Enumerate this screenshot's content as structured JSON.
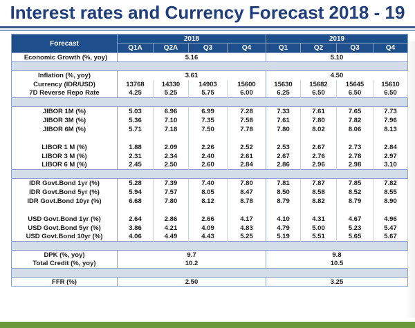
{
  "title": "Interest rates and Currency Forecast 2018 - 19",
  "header": {
    "label": "Forecast",
    "year_a": "2018",
    "year_b": "2019",
    "quarters": [
      "Q1A",
      "Q2A",
      "Q3",
      "Q4",
      "Q1",
      "Q2",
      "Q3",
      "Q4"
    ]
  },
  "rows": {
    "growth": {
      "label": "Economic Growth (%, yoy)",
      "v2018": "5.16",
      "v2019": "5.10"
    },
    "inflation": {
      "label": "Inflation (%, yoy)",
      "v2018": "3.61",
      "v2019": "4.50"
    },
    "currency": {
      "label": "Currency (IDR/USD)",
      "values": [
        "13768",
        "14330",
        "14903",
        "15600",
        "15630",
        "15682",
        "15645",
        "15610"
      ]
    },
    "repo": {
      "label": "7D Reverse Repo Rate",
      "values": [
        "4.25",
        "5.25",
        "5.75",
        "6.00",
        "6.25",
        "6.50",
        "6.50",
        "6.50"
      ]
    },
    "jibor1": {
      "label": "JIBOR 1M (%)",
      "values": [
        "5.03",
        "6.96",
        "6.99",
        "7.28",
        "7.33",
        "7.61",
        "7.65",
        "7.73"
      ]
    },
    "jibor3": {
      "label": "JIBOR 3M (%)",
      "values": [
        "5.36",
        "7.10",
        "7.35",
        "7.58",
        "7.61",
        "7.80",
        "7.82",
        "7.96"
      ]
    },
    "jibor6": {
      "label": "JIBOR 6M (%)",
      "values": [
        "5.71",
        "7.18",
        "7.50",
        "7.78",
        "7.80",
        "8.02",
        "8.06",
        "8.13"
      ]
    },
    "libor1": {
      "label": "LIBOR 1 M (%)",
      "values": [
        "1.88",
        "2.09",
        "2.26",
        "2.52",
        "2.53",
        "2.67",
        "2.73",
        "2.84"
      ]
    },
    "libor3": {
      "label": "LIBOR 3 M (%)",
      "values": [
        "2.31",
        "2.34",
        "2.40",
        "2.61",
        "2.67",
        "2.76",
        "2.78",
        "2.97"
      ]
    },
    "libor6": {
      "label": "LIBOR 6 M (%)",
      "values": [
        "2.45",
        "2.50",
        "2.60",
        "2.84",
        "2.86",
        "2.96",
        "2.98",
        "3.10"
      ]
    },
    "idr1": {
      "label": "IDR Govt.Bond 1yr (%)",
      "values": [
        "5.28",
        "7.39",
        "7.40",
        "7.80",
        "7.81",
        "7.87",
        "7.85",
        "7.82"
      ]
    },
    "idr5": {
      "label": "IDR Govt.Bond 5yr (%)",
      "values": [
        "5.94",
        "7.57",
        "8.05",
        "8.47",
        "8.50",
        "8.58",
        "8.52",
        "8.55"
      ]
    },
    "idr10": {
      "label": "IDR Govt.Bond 10yr (%)",
      "values": [
        "6.68",
        "7.80",
        "8.12",
        "8.78",
        "8.79",
        "8.82",
        "8.79",
        "8.90"
      ]
    },
    "usd1": {
      "label": "USD Govt.Bond 1yr (%)",
      "values": [
        "2.64",
        "2.86",
        "2.66",
        "4.17",
        "4.10",
        "4.31",
        "4.67",
        "4.96"
      ]
    },
    "usd5": {
      "label": "USD Govt.Bond 5yr (%)",
      "values": [
        "3.86",
        "4.21",
        "4.09",
        "4.83",
        "4.79",
        "5.00",
        "5.23",
        "5.47"
      ]
    },
    "usd10": {
      "label": "USD Govt.Bond 10yr (%)",
      "values": [
        "4.06",
        "4.49",
        "4.43",
        "5.25",
        "5.19",
        "5.51",
        "5.65",
        "5.67"
      ]
    },
    "dpk": {
      "label": "DPK (%, yoy)",
      "v2018": "9.7",
      "v2019": "9.8"
    },
    "credit": {
      "label": "Total Credit (%, yoy)",
      "v2018": "10.2",
      "v2019": "10.5"
    },
    "ffr": {
      "label": "FFR (%)",
      "v2018": "2.50",
      "v2019": "3.25"
    }
  },
  "colors": {
    "title": "#1f3d7a",
    "header_bg": "#1f4e8c",
    "separator_bg": "#d3dde9",
    "footer_bar": "#6a9a3c"
  }
}
